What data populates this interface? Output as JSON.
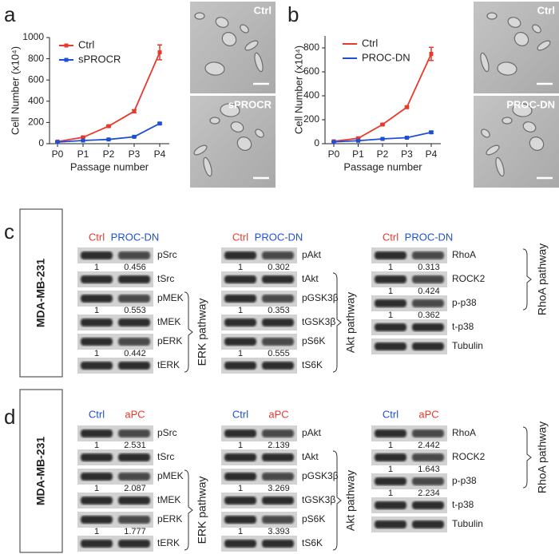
{
  "panel_labels": [
    "a",
    "b",
    "c",
    "d"
  ],
  "chart_data": [
    {
      "type": "line",
      "ylabel": "Cell Number (x10⁴)",
      "xlabel": "Passage number",
      "categories": [
        "P0",
        "P1",
        "P2",
        "P3",
        "P4"
      ],
      "ylim": [
        0,
        1000
      ],
      "yticks": [
        0,
        200,
        400,
        600,
        800,
        1000
      ],
      "legend": "upper left",
      "series": [
        {
          "name": "Ctrl",
          "color": "#e8392c",
          "values": [
            20,
            60,
            165,
            305,
            860
          ],
          "errors": [
            4,
            5,
            6,
            15,
            70
          ]
        },
        {
          "name": "sPROCR",
          "color": "#1f4fd6",
          "values": [
            15,
            30,
            40,
            65,
            190
          ],
          "errors": [
            3,
            3,
            4,
            5,
            8
          ]
        }
      ]
    },
    {
      "type": "line",
      "ylabel": "Cell Number (x10⁴)",
      "xlabel": "Passage number",
      "categories": [
        "P0",
        "P1",
        "P2",
        "P3",
        "P4"
      ],
      "ylim": [
        0,
        900
      ],
      "yticks": [
        0,
        200,
        400,
        600,
        800
      ],
      "legend": "upper left",
      "series": [
        {
          "name": "Ctrl",
          "color": "#e8392c",
          "values": [
            20,
            45,
            160,
            305,
            750
          ],
          "errors": [
            3,
            4,
            6,
            8,
            55
          ]
        },
        {
          "name": "PROC-DN",
          "color": "#1f4fd6",
          "values": [
            15,
            25,
            40,
            50,
            95
          ],
          "errors": [
            2,
            3,
            3,
            4,
            8
          ]
        }
      ]
    }
  ],
  "micrographs": [
    [
      "Ctrl",
      "sPROCR"
    ],
    [
      "Ctrl",
      "PROC-DN"
    ]
  ],
  "blots": [
    {
      "cell_line": "MDA-MB-231",
      "condition_colors": [
        "#e8392c",
        "#1f4fd6"
      ],
      "groups": [
        {
          "conditions": [
            "Ctrl",
            "PROC-DN"
          ],
          "pathway": "ERK pathway",
          "rows": [
            {
              "label": "pSrc",
              "quant": [
                "1",
                "0.456"
              ]
            },
            {
              "label": "tSrc"
            },
            {
              "label": "pMEK",
              "quant": [
                "1",
                "0.553"
              ]
            },
            {
              "label": "tMEK"
            },
            {
              "label": "pERK",
              "quant": [
                "1",
                "0.442"
              ]
            },
            {
              "label": "tERK"
            }
          ]
        },
        {
          "conditions": [
            "Ctrl",
            "PROC-DN"
          ],
          "pathway": "Akt pathway",
          "rows": [
            {
              "label": "pAkt",
              "quant": [
                "1",
                "0.302"
              ]
            },
            {
              "label": "tAkt"
            },
            {
              "label": "pGSK3β",
              "quant": [
                "1",
                "0.353"
              ]
            },
            {
              "label": "tGSK3β"
            },
            {
              "label": "pS6K",
              "quant": [
                "1",
                "0.555"
              ]
            },
            {
              "label": "tS6K"
            }
          ]
        },
        {
          "conditions": [
            "Ctrl",
            "PROC-DN"
          ],
          "pathway": "RhoA pathway",
          "rows": [
            {
              "label": "RhoA",
              "quant": [
                "1",
                "0.313"
              ]
            },
            {
              "label": "ROCK2",
              "quant": [
                "1",
                "0.424"
              ]
            },
            {
              "label": "p-p38",
              "quant": [
                "1",
                "0.362"
              ]
            },
            {
              "label": "t-p38"
            },
            {
              "label": "Tubulin"
            }
          ]
        }
      ]
    },
    {
      "cell_line": "MDA-MB-231",
      "condition_colors": [
        "#1f4fd6",
        "#e8392c"
      ],
      "groups": [
        {
          "conditions": [
            "Ctrl",
            "aPC"
          ],
          "pathway": "ERK pathway",
          "rows": [
            {
              "label": "pSrc",
              "quant": [
                "1",
                "2.531"
              ]
            },
            {
              "label": "tSrc"
            },
            {
              "label": "pMEK",
              "quant": [
                "1",
                "2.087"
              ]
            },
            {
              "label": "tMEK"
            },
            {
              "label": "pERK",
              "quant": [
                "1",
                "1.777"
              ]
            },
            {
              "label": "tERK"
            }
          ]
        },
        {
          "conditions": [
            "Ctrl",
            "aPC"
          ],
          "pathway": "Akt pathway",
          "rows": [
            {
              "label": "pAkt",
              "quant": [
                "1",
                "2.139"
              ]
            },
            {
              "label": "tAkt"
            },
            {
              "label": "pGSK3β",
              "quant": [
                "1",
                "3.269"
              ]
            },
            {
              "label": "tGSK3β"
            },
            {
              "label": "pS6K",
              "quant": [
                "1",
                "3.393"
              ]
            },
            {
              "label": "tS6K"
            }
          ]
        },
        {
          "conditions": [
            "Ctrl",
            "aPC"
          ],
          "pathway": "RhoA pathway",
          "rows": [
            {
              "label": "RhoA",
              "quant": [
                "1",
                "2.442"
              ]
            },
            {
              "label": "ROCK2",
              "quant": [
                "1",
                "1.643"
              ]
            },
            {
              "label": "p-p38",
              "quant": [
                "1",
                "2.234"
              ]
            },
            {
              "label": "t-p38"
            },
            {
              "label": "Tubulin"
            }
          ]
        }
      ]
    }
  ]
}
